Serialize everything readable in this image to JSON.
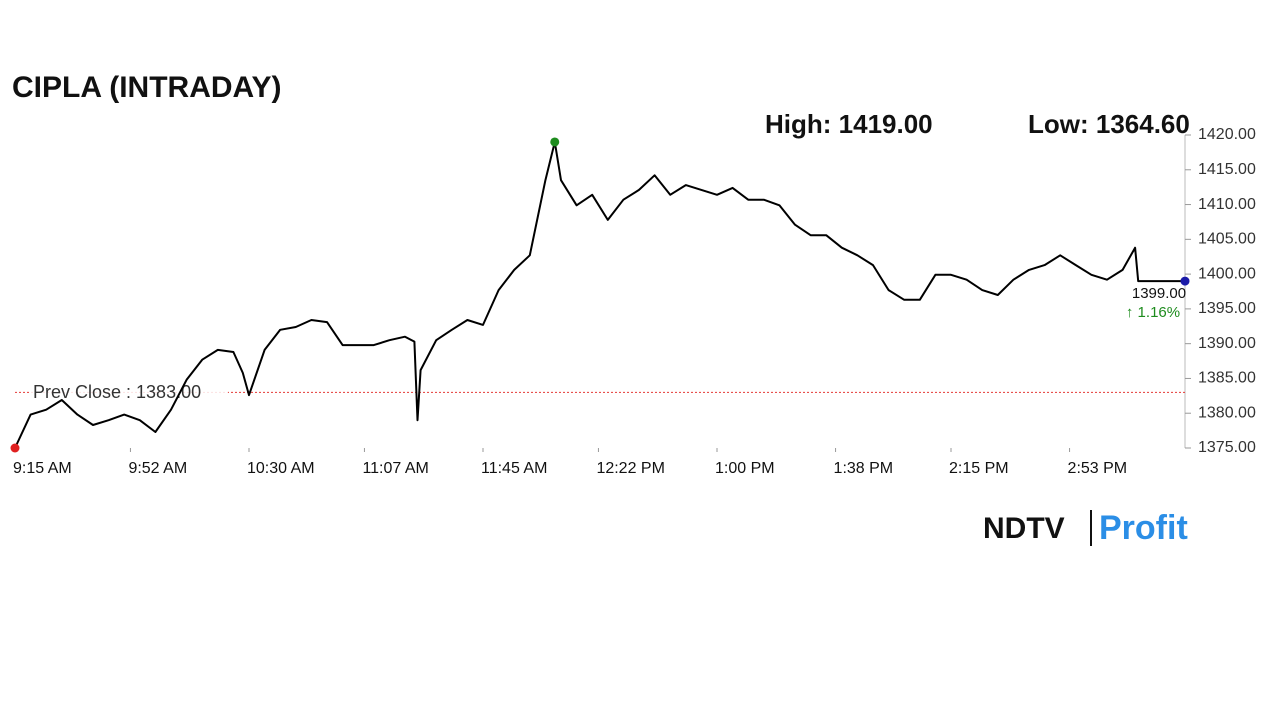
{
  "chart_data": {
    "type": "line",
    "title": "CIPLA (INTRADAY)",
    "high_label": "High: 1419.00",
    "low_label": "Low: 1364.60",
    "x": [
      "9:15 AM",
      "9:20 AM",
      "9:25 AM",
      "9:30 AM",
      "9:35 AM",
      "9:40 AM",
      "9:45 AM",
      "9:50 AM",
      "9:55 AM",
      "10:00 AM",
      "10:05 AM",
      "10:10 AM",
      "10:15 AM",
      "10:20 AM",
      "10:25 AM",
      "10:28 AM",
      "10:30 AM",
      "10:35 AM",
      "10:40 AM",
      "10:45 AM",
      "10:50 AM",
      "10:55 AM",
      "11:00 AM",
      "11:05 AM",
      "11:10 AM",
      "11:15 AM",
      "11:20 AM",
      "11:23 AM",
      "11:24 AM",
      "11:25 AM",
      "11:30 AM",
      "11:35 AM",
      "11:40 AM",
      "11:45 AM",
      "11:50 AM",
      "11:55 AM",
      "12:00 PM",
      "12:05 PM",
      "12:08 PM",
      "12:10 PM",
      "12:15 PM",
      "12:20 PM",
      "12:25 PM",
      "12:30 PM",
      "12:35 PM",
      "12:40 PM",
      "12:45 PM",
      "12:50 PM",
      "12:55 PM",
      "1:00 PM",
      "1:05 PM",
      "1:10 PM",
      "1:15 PM",
      "1:20 PM",
      "1:25 PM",
      "1:30 PM",
      "1:35 PM",
      "1:40 PM",
      "1:45 PM",
      "1:50 PM",
      "1:55 PM",
      "2:00 PM",
      "2:05 PM",
      "2:10 PM",
      "2:15 PM",
      "2:20 PM",
      "2:25 PM",
      "2:30 PM",
      "2:35 PM",
      "2:40 PM",
      "2:45 PM",
      "2:50 PM",
      "2:55 PM",
      "3:00 PM",
      "3:05 PM",
      "3:10 PM",
      "3:14 PM",
      "3:15 PM",
      "3:30 PM"
    ],
    "series": [
      {
        "color": "#000000",
        "values": [
          1375,
          1379.8,
          1380.5,
          1381.9,
          1379.8,
          1378.3,
          1379,
          1379.8,
          1379,
          1377.3,
          1380.5,
          1384.8,
          1387.7,
          1389.1,
          1388.8,
          1385.8,
          1382.6,
          1389.1,
          1392,
          1392.4,
          1393.4,
          1393.1,
          1389.8,
          1389.8,
          1389.8,
          1390.5,
          1391,
          1390.3,
          1379,
          1386.2,
          1390.5,
          1392,
          1393.4,
          1392.7,
          1397.7,
          1400.6,
          1402.7,
          1413.5,
          1419,
          1413.5,
          1409.9,
          1411.4,
          1407.8,
          1410.7,
          1412.1,
          1414.2,
          1411.4,
          1412.8,
          1412.1,
          1411.4,
          1412.4,
          1410.7,
          1410.7,
          1409.9,
          1407.1,
          1405.6,
          1405.6,
          1403.8,
          1402.7,
          1401.3,
          1397.7,
          1396.3,
          1396.3,
          1399.9,
          1399.9,
          1399.2,
          1397.7,
          1397,
          1399.2,
          1400.6,
          1401.3,
          1402.7,
          1401.3,
          1399.9,
          1399.2,
          1400.6,
          1403.8,
          1399,
          1399
        ]
      }
    ],
    "xlim": [
      "9:15 AM",
      "3:30 PM"
    ],
    "xticks": [
      "9:15 AM",
      "9:52 AM",
      "10:30 AM",
      "11:07 AM",
      "11:45 AM",
      "12:22 PM",
      "1:00 PM",
      "1:38 PM",
      "2:15 PM",
      "2:53 PM"
    ],
    "ylim": [
      1375,
      1420
    ],
    "yticks": [
      {
        "value": 1375,
        "label": "1375.00"
      },
      {
        "value": 1380,
        "label": "1380.00"
      },
      {
        "value": 1385,
        "label": "1385.00"
      },
      {
        "value": 1390,
        "label": "1390.00"
      },
      {
        "value": 1395,
        "label": "1395.00"
      },
      {
        "value": 1400,
        "label": "1400.00"
      },
      {
        "value": 1405,
        "label": "1405.00"
      },
      {
        "value": 1410,
        "label": "1410.00"
      },
      {
        "value": 1415,
        "label": "1415.00"
      },
      {
        "value": 1420,
        "label": "1420.00"
      }
    ],
    "prev_close": {
      "value": 1383,
      "label": "Prev Close : 1383.00",
      "color": "#e53935"
    },
    "last_price": {
      "value": 1399,
      "label": "1399.00"
    },
    "change_label": "↑ 1.16%",
    "change_color": "#1e8c1e",
    "high_color": "#1e8c1e",
    "start_color": "#e02020",
    "last_color": "#1a1aa8",
    "logo": {
      "brand": "NDTV",
      "product": "Profit"
    }
  }
}
